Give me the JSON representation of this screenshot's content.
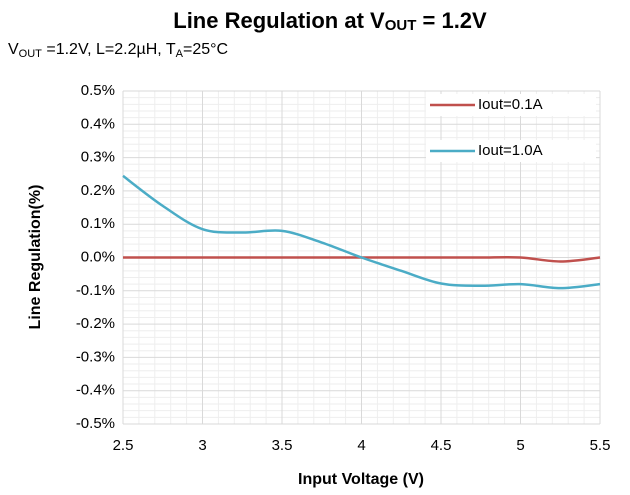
{
  "chart_data": {
    "type": "line",
    "title": [
      "Line Regulation at V",
      "OUT",
      " = 1.2V"
    ],
    "subtitle": [
      "V",
      "OUT",
      " =1.2V, L=2.2µH, T",
      "A",
      "=25°C"
    ],
    "x_label": "Input Voltage (V)",
    "y_label": "Line Regulation(%)",
    "x": [
      2.5,
      2.75,
      3,
      3.25,
      3.5,
      3.75,
      4,
      4.25,
      4.5,
      4.75,
      5,
      5.25,
      5.5
    ],
    "series": [
      {
        "name": "Iout=0.1A",
        "color": "#c0504d",
        "values": [
          0,
          0,
          0,
          0,
          0,
          0,
          0,
          0,
          0,
          0,
          0,
          -0.012,
          0
        ]
      },
      {
        "name": "Iout=1.0A",
        "color": "#4bacc6",
        "values": [
          0.245,
          0.155,
          0.085,
          0.075,
          0.08,
          0.045,
          0,
          -0.04,
          -0.078,
          -0.085,
          -0.08,
          -0.092,
          -0.08
        ]
      }
    ],
    "xlim": [
      2.5,
      5.5
    ],
    "xticks": [
      2.5,
      3,
      3.5,
      4,
      4.5,
      5,
      5.5
    ],
    "ylim": [
      -0.5,
      0.5
    ],
    "yticks": [
      {
        "value": 0.5,
        "label": "0.5%"
      },
      {
        "value": 0.4,
        "label": "0.4%"
      },
      {
        "value": 0.3,
        "label": "0.3%"
      },
      {
        "value": 0.2,
        "label": "0.2%"
      },
      {
        "value": 0.1,
        "label": "0.1%"
      },
      {
        "value": 0,
        "label": "0.0%"
      },
      {
        "value": -0.1,
        "label": "-0.1%"
      },
      {
        "value": -0.2,
        "label": "-0.2%"
      },
      {
        "value": -0.3,
        "label": "-0.3%"
      },
      {
        "value": -0.4,
        "label": "-0.4%"
      },
      {
        "value": -0.5,
        "label": "-0.5%"
      }
    ],
    "grid": true,
    "minor_grid_divisions": 5,
    "legend": "upper right"
  }
}
